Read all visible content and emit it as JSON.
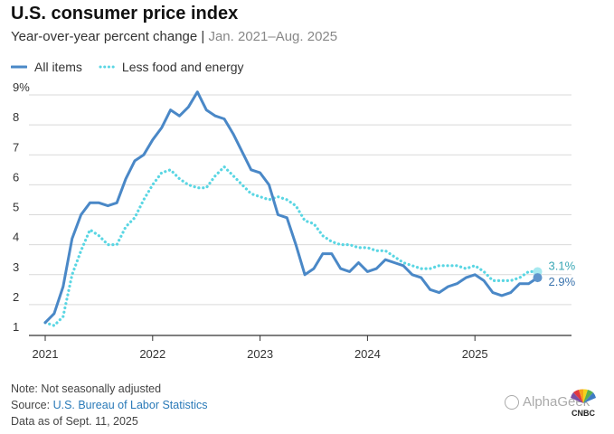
{
  "header": {
    "title": "U.S. consumer price index",
    "subtitle_main": "Year-over-year percent change | ",
    "subtitle_range": "Jan. 2021–Aug. 2025"
  },
  "legend": {
    "all_items": "All items",
    "core": "Less food and energy"
  },
  "notes": {
    "note": "Note: Not seasonally adjusted",
    "source_prefix": "Source: ",
    "source_link": "U.S. Bureau of Labor Statistics",
    "data_as_of": "Data as of Sept. 11, 2025"
  },
  "watermark": {
    "text": "AlphaGeek",
    "logo_text": "CNBC"
  },
  "colors": {
    "all_items": "#4a88c7",
    "core": "#5ad6e3",
    "grid": "#d9d9d9",
    "axis": "#333333"
  },
  "chart_data": {
    "type": "line",
    "title": "U.S. consumer price index",
    "subtitle": "Year-over-year percent change | Jan. 2021–Aug. 2025",
    "xlabel": "",
    "ylabel": "",
    "ylim": [
      1,
      9
    ],
    "yticks": [
      "1",
      "2",
      "3",
      "4",
      "5",
      "6",
      "7",
      "8",
      "9%"
    ],
    "xticks": [
      "2021",
      "2022",
      "2023",
      "2024",
      "2025"
    ],
    "grid": true,
    "legend_position": "top-left",
    "end_labels": [
      "3.1%",
      "2.9%"
    ],
    "series": [
      {
        "name": "All items",
        "style": "solid",
        "values": [
          1.4,
          1.7,
          2.6,
          4.2,
          5.0,
          5.4,
          5.4,
          5.3,
          5.4,
          6.2,
          6.8,
          7.0,
          7.5,
          7.9,
          8.5,
          8.3,
          8.6,
          9.1,
          8.5,
          8.3,
          8.2,
          7.7,
          7.1,
          6.5,
          6.4,
          6.0,
          5.0,
          4.9,
          4.0,
          3.0,
          3.2,
          3.7,
          3.7,
          3.2,
          3.1,
          3.4,
          3.1,
          3.2,
          3.5,
          3.4,
          3.3,
          3.0,
          2.9,
          2.5,
          2.4,
          2.6,
          2.7,
          2.9,
          3.0,
          2.8,
          2.4,
          2.3,
          2.4,
          2.7,
          2.7,
          2.9
        ]
      },
      {
        "name": "Less food and energy",
        "style": "dotted",
        "values": [
          1.4,
          1.3,
          1.6,
          3.0,
          3.8,
          4.5,
          4.3,
          4.0,
          4.0,
          4.6,
          4.9,
          5.5,
          6.0,
          6.4,
          6.5,
          6.2,
          6.0,
          5.9,
          5.9,
          6.3,
          6.6,
          6.3,
          6.0,
          5.7,
          5.6,
          5.5,
          5.6,
          5.5,
          5.3,
          4.8,
          4.7,
          4.3,
          4.1,
          4.0,
          4.0,
          3.9,
          3.9,
          3.8,
          3.8,
          3.6,
          3.4,
          3.3,
          3.2,
          3.2,
          3.3,
          3.3,
          3.3,
          3.2,
          3.3,
          3.1,
          2.8,
          2.8,
          2.8,
          2.9,
          3.1,
          3.1
        ]
      }
    ]
  }
}
